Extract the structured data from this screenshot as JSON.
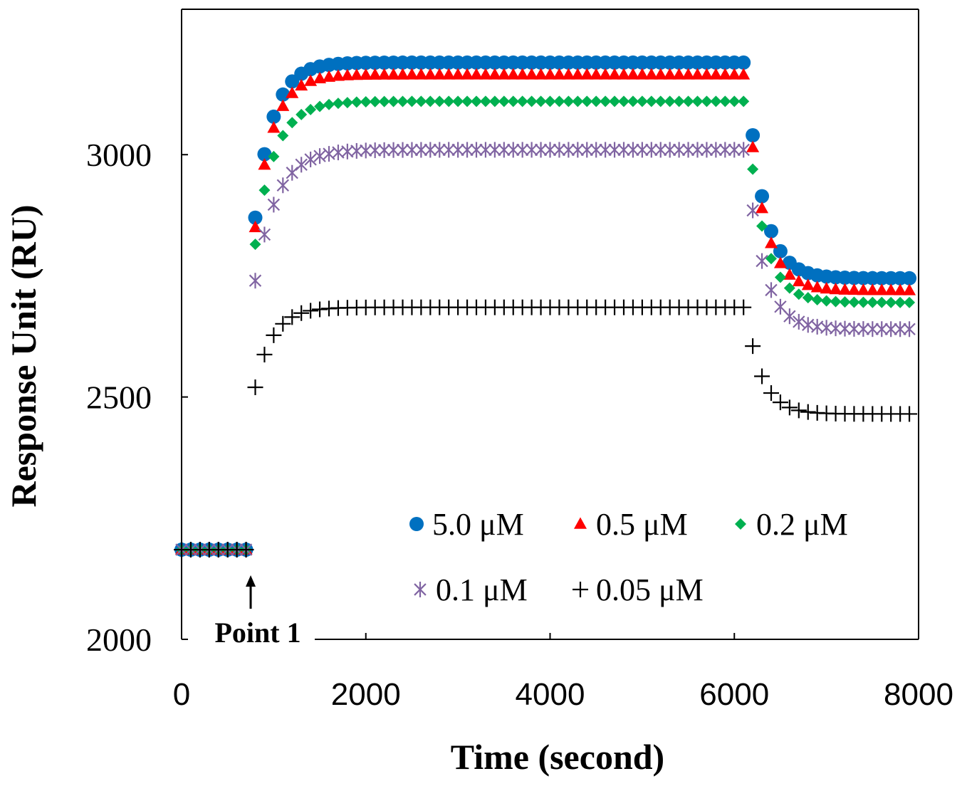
{
  "chart_data": {
    "type": "scatter",
    "xlabel": "Time (second)",
    "ylabel": "Response Unit (RU)",
    "xlim": [
      0,
      8000
    ],
    "ylim": [
      2000,
      3300
    ],
    "x_ticks": [
      "0",
      "2000",
      "4000",
      "6000",
      "8000"
    ],
    "y_ticks": [
      "2000",
      "2500",
      "3000"
    ],
    "grid": false,
    "legend_position": "bottom-right, inside plot",
    "annotation": {
      "label": "Point 1",
      "x": 750,
      "arrow": "up"
    },
    "phases": {
      "baseline": {
        "x_start": 0,
        "x_end": 750,
        "step": 100
      },
      "association": {
        "x_start": 800,
        "x_end": 6100,
        "step": 100
      },
      "dissociation": {
        "x_start": 6100,
        "x_end": 7900,
        "step": 100
      }
    },
    "series": [
      {
        "name": "5.0 μM",
        "marker": "circle",
        "color": "#0070C0",
        "baseline": 2185,
        "association_start": 2870,
        "plateau": 3190,
        "association_tau": 190,
        "dissociation_start": 3040,
        "dissociation_end": 2745,
        "dissociation_tau": 180
      },
      {
        "name": "0.5 μM",
        "marker": "triangle",
        "color": "#FF0000",
        "baseline": 2185,
        "association_start": 2850,
        "plateau": 3165,
        "association_tau": 190,
        "dissociation_start": 3015,
        "dissociation_end": 2720,
        "dissociation_tau": 180
      },
      {
        "name": "0.2 μM",
        "marker": "diamond",
        "color": "#00B050",
        "baseline": 2185,
        "association_start": 2815,
        "plateau": 3110,
        "association_tau": 210,
        "dissociation_start": 2970,
        "dissociation_end": 2695,
        "dissociation_tau": 180
      },
      {
        "name": "0.1 μM",
        "marker": "asterisk",
        "color": "#8064A2",
        "baseline": 2185,
        "association_start": 2740,
        "plateau": 3010,
        "association_tau": 230,
        "dissociation_start": 2885,
        "dissociation_end": 2640,
        "dissociation_tau": 180
      },
      {
        "name": "0.05 μM",
        "marker": "plus",
        "color": "#000000",
        "baseline": 2185,
        "association_start": 2520,
        "plateau": 2685,
        "association_tau": 190,
        "dissociation_start": 2605,
        "dissociation_end": 2465,
        "dissociation_tau": 170
      }
    ]
  }
}
